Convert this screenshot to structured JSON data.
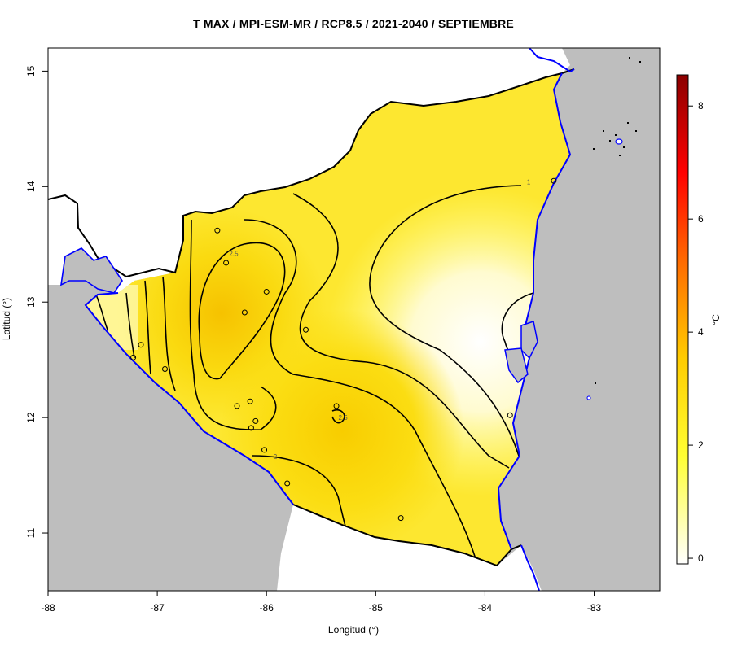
{
  "title": "T MAX / MPI-ESM-MR / RCP8.5 / 2021-2040 / SEPTIEMBRE",
  "axes": {
    "xlabel": "Longitud (°)",
    "ylabel": "Latitud (°)",
    "x_ticks": [
      "-88",
      "-87",
      "-86",
      "-85",
      "-84",
      "-83"
    ],
    "y_ticks": [
      "11",
      "12",
      "13",
      "14",
      "15"
    ]
  },
  "map": {
    "x_range": [
      -88,
      -82.4
    ],
    "y_range": [
      10.5,
      15.2
    ],
    "colors": {
      "ocean": "#bebebe",
      "land_outside": "#ffffff",
      "border": "#000000",
      "coastline": "#0000ff"
    },
    "contour_labels": [
      {
        "text": "2.5",
        "lon": -86.3,
        "lat": 13.4
      },
      {
        "text": "2.5",
        "lon": -85.3,
        "lat": 11.98
      },
      {
        "text": "2",
        "lon": -85.92,
        "lat": 11.64
      },
      {
        "text": "1",
        "lon": -83.6,
        "lat": 14.02
      }
    ],
    "stations": [
      {
        "lon": -86.45,
        "lat": 13.62
      },
      {
        "lon": -86.37,
        "lat": 13.34
      },
      {
        "lon": -86.0,
        "lat": 13.09
      },
      {
        "lon": -86.2,
        "lat": 12.91
      },
      {
        "lon": -85.64,
        "lat": 12.76
      },
      {
        "lon": -87.15,
        "lat": 12.63
      },
      {
        "lon": -87.22,
        "lat": 12.52
      },
      {
        "lon": -86.93,
        "lat": 12.42
      },
      {
        "lon": -86.27,
        "lat": 12.1
      },
      {
        "lon": -86.15,
        "lat": 12.14
      },
      {
        "lon": -86.1,
        "lat": 11.97
      },
      {
        "lon": -86.14,
        "lat": 11.91
      },
      {
        "lon": -86.02,
        "lat": 11.72
      },
      {
        "lon": -85.81,
        "lat": 11.43
      },
      {
        "lon": -85.36,
        "lat": 12.1
      },
      {
        "lon": -84.77,
        "lat": 11.13
      },
      {
        "lon": -83.77,
        "lat": 12.02
      },
      {
        "lon": -83.37,
        "lat": 14.05
      }
    ]
  },
  "colorbar": {
    "label": "°C",
    "range": [
      -0.1,
      8.55
    ],
    "ticks": [
      "0",
      "2",
      "4",
      "6",
      "8"
    ],
    "colormap": [
      "#ffffff",
      "#ffff33",
      "#ffcc00",
      "#ff6600",
      "#ff0000",
      "#8b0000"
    ]
  }
}
